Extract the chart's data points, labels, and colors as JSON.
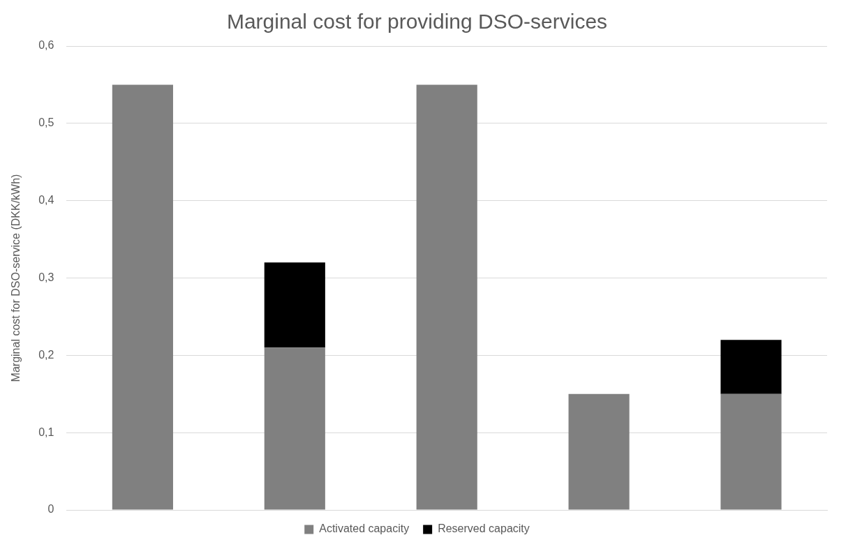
{
  "chart_data": {
    "type": "bar",
    "title": "Marginal cost for providing DSO-services",
    "ylabel": "Marginal cost for DSO-service (DKK/kWh)",
    "categories": [
      null,
      null,
      null,
      null,
      null
    ],
    "series": [
      {
        "name": "Activated capacity",
        "color": "#808080",
        "values": [
          0.55,
          0.21,
          0.55,
          0.15,
          0.15
        ]
      },
      {
        "name": "Reserved capacity",
        "color": "#000000",
        "values": [
          null,
          0.11,
          null,
          null,
          0.07
        ]
      }
    ],
    "stacked": true,
    "ylim": [
      0,
      0.6
    ],
    "yticks": [
      {
        "value": 0,
        "label": "0"
      },
      {
        "value": 0.1,
        "label": "0,1"
      },
      {
        "value": 0.2,
        "label": "0,2"
      },
      {
        "value": 0.3,
        "label": "0,3"
      },
      {
        "value": 0.4,
        "label": "0,4"
      },
      {
        "value": 0.5,
        "label": "0,5"
      },
      {
        "value": 0.6,
        "label": "0,6"
      }
    ],
    "grid": "y",
    "legend": "bottom",
    "tick_labels": "y"
  }
}
